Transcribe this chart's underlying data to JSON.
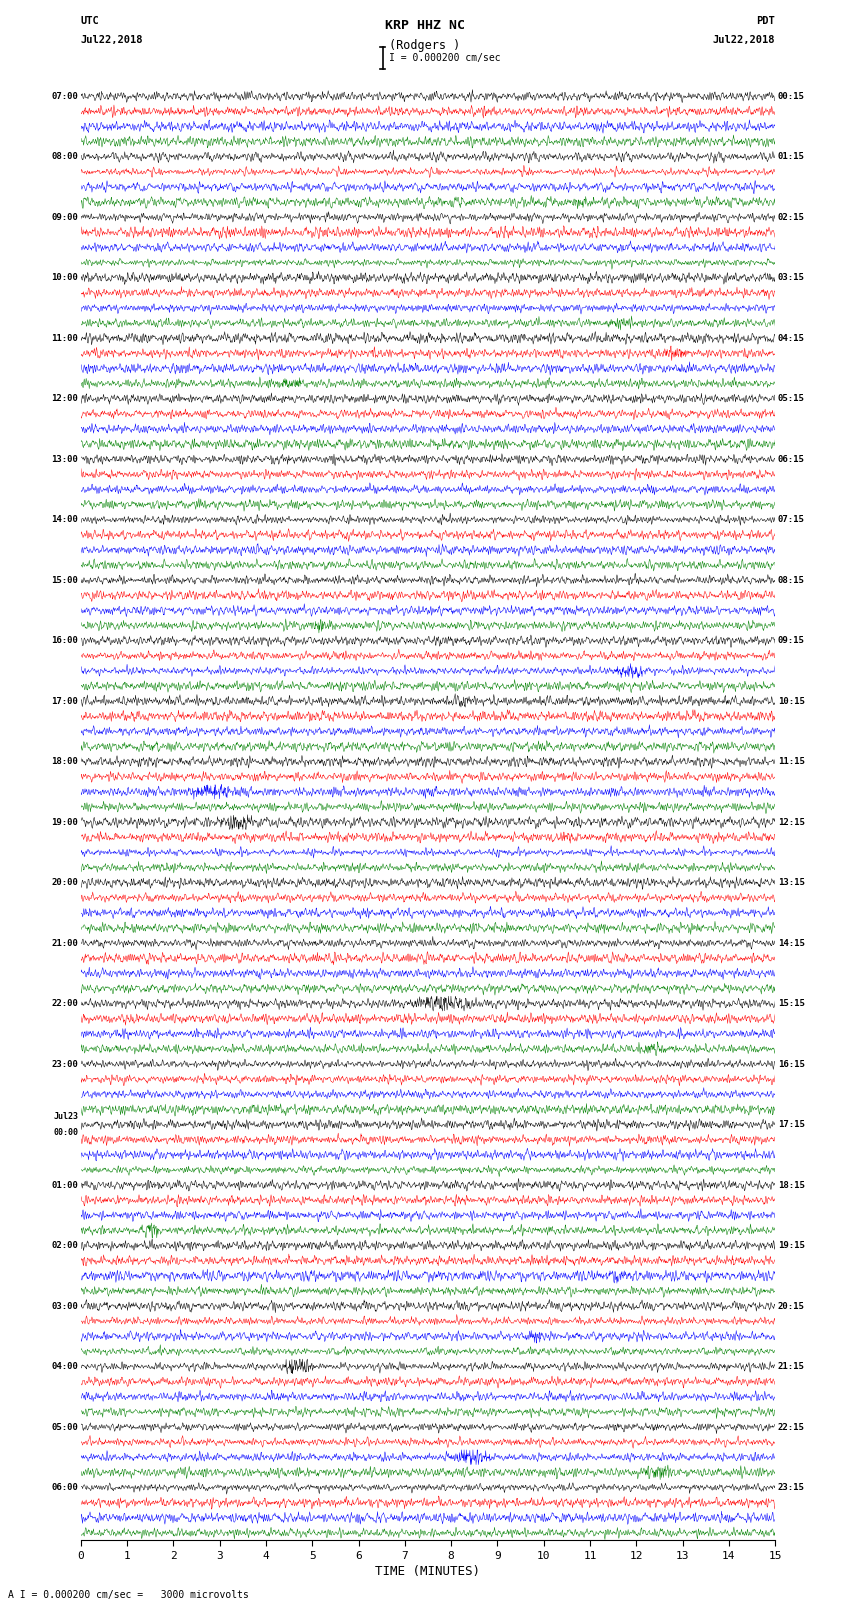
{
  "title_line1": "KRP HHZ NC",
  "title_line2": "(Rodgers )",
  "title_line3": "I = 0.000200 cm/sec",
  "left_header_line1": "UTC",
  "left_header_line2": "Jul22,2018",
  "right_header_line1": "PDT",
  "right_header_line2": "Jul22,2018",
  "bottom_label": "TIME (MINUTES)",
  "bottom_note": "A I = 0.000200 cm/sec =   3000 microvolts",
  "xlabel_ticks": [
    0,
    1,
    2,
    3,
    4,
    5,
    6,
    7,
    8,
    9,
    10,
    11,
    12,
    13,
    14,
    15
  ],
  "trace_colors_cycle": [
    "black",
    "red",
    "blue",
    "green"
  ],
  "num_traces": 96,
  "fig_width": 8.5,
  "fig_height": 16.13,
  "dpi": 100,
  "left_times_utc": [
    "07:00",
    "",
    "",
    "",
    "08:00",
    "",
    "",
    "",
    "09:00",
    "",
    "",
    "",
    "10:00",
    "",
    "",
    "",
    "11:00",
    "",
    "",
    "",
    "12:00",
    "",
    "",
    "",
    "13:00",
    "",
    "",
    "",
    "14:00",
    "",
    "",
    "",
    "15:00",
    "",
    "",
    "",
    "16:00",
    "",
    "",
    "",
    "17:00",
    "",
    "",
    "",
    "18:00",
    "",
    "",
    "",
    "19:00",
    "",
    "",
    "",
    "20:00",
    "",
    "",
    "",
    "21:00",
    "",
    "",
    "",
    "22:00",
    "",
    "",
    "",
    "23:00",
    "",
    "",
    "",
    "Jul23\n00:00",
    "",
    "",
    "",
    "01:00",
    "",
    "",
    "",
    "02:00",
    "",
    "",
    "",
    "03:00",
    "",
    "",
    "",
    "04:00",
    "",
    "",
    "",
    "05:00",
    "",
    "",
    "",
    "06:00",
    "",
    "",
    ""
  ],
  "right_times_pdt": [
    "00:15",
    "",
    "",
    "",
    "01:15",
    "",
    "",
    "",
    "02:15",
    "",
    "",
    "",
    "03:15",
    "",
    "",
    "",
    "04:15",
    "",
    "",
    "",
    "05:15",
    "",
    "",
    "",
    "06:15",
    "",
    "",
    "",
    "07:15",
    "",
    "",
    "",
    "08:15",
    "",
    "",
    "",
    "09:15",
    "",
    "",
    "",
    "10:15",
    "",
    "",
    "",
    "11:15",
    "",
    "",
    "",
    "12:15",
    "",
    "",
    "",
    "13:15",
    "",
    "",
    "",
    "14:15",
    "",
    "",
    "",
    "15:15",
    "",
    "",
    "",
    "16:15",
    "",
    "",
    "",
    "17:15",
    "",
    "",
    "",
    "18:15",
    "",
    "",
    "",
    "19:15",
    "",
    "",
    "",
    "20:15",
    "",
    "",
    "",
    "21:15",
    "",
    "",
    "",
    "22:15",
    "",
    "",
    "",
    "23:15",
    "",
    "",
    ""
  ]
}
